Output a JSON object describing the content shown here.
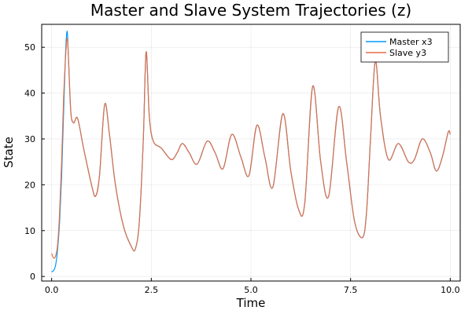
{
  "chart_data": {
    "type": "line",
    "title": "Master and Slave System Trajectories (z)",
    "xlabel": "Time",
    "ylabel": "State",
    "xlim": [
      -0.25,
      10.25
    ],
    "ylim": [
      -1,
      55
    ],
    "grid": true,
    "legend_position": "top-right",
    "x_ticks": [
      0,
      2.5,
      5,
      7.5,
      10
    ],
    "x_tick_labels": [
      "0.0",
      "2.5",
      "5.0",
      "7.5",
      "10.0"
    ],
    "y_ticks": [
      0,
      10,
      20,
      30,
      40,
      50
    ],
    "y_tick_labels": [
      "0",
      "10",
      "20",
      "30",
      "40",
      "50"
    ],
    "series": [
      {
        "name": "Master x3",
        "color": "#009AF9",
        "x": [
          0,
          0.05,
          0.1,
          0.15,
          0.2,
          0.25,
          0.3,
          0.35,
          0.39,
          0.42,
          0.48,
          0.55,
          0.65,
          0.8,
          1.0,
          1.1,
          1.2,
          1.33,
          1.45,
          1.6,
          1.8,
          2.0,
          2.1,
          2.2,
          2.3,
          2.37,
          2.45,
          2.55,
          2.75,
          3.0,
          3.15,
          3.28,
          3.45,
          3.65,
          3.9,
          4.1,
          4.3,
          4.52,
          4.75,
          4.95,
          5.15,
          5.35,
          5.55,
          5.8,
          6.0,
          6.2,
          6.35,
          6.55,
          6.75,
          6.95,
          7.2,
          7.4,
          7.6,
          7.8,
          7.9,
          8.0,
          8.12,
          8.25,
          8.45,
          8.7,
          8.95,
          9.1,
          9.3,
          9.5,
          9.65,
          9.8,
          9.95,
          10.0
        ],
        "y": [
          1,
          1.3,
          2.5,
          6,
          12,
          22,
          36,
          49,
          53.5,
          48,
          36,
          33.5,
          34.5,
          28,
          20,
          17.5,
          22,
          37.5,
          31,
          20,
          11,
          6.5,
          6,
          12,
          30,
          49,
          35,
          29.5,
          28,
          25.5,
          27,
          29,
          27,
          24.5,
          29.5,
          27,
          23.5,
          31,
          26,
          22,
          33,
          26,
          19.5,
          35.5,
          23,
          14.5,
          16,
          41.5,
          25,
          17.5,
          37,
          25,
          12,
          8.5,
          14,
          30,
          47,
          35,
          25.5,
          29,
          25,
          25.5,
          30,
          27,
          23,
          26,
          31.5,
          31
        ]
      },
      {
        "name": "Slave y3",
        "color": "#E26F46",
        "x": [
          0,
          0.05,
          0.1,
          0.15,
          0.2,
          0.25,
          0.3,
          0.35,
          0.39,
          0.42,
          0.48,
          0.55,
          0.65,
          0.8,
          1.0,
          1.1,
          1.2,
          1.33,
          1.45,
          1.6,
          1.8,
          2.0,
          2.1,
          2.2,
          2.3,
          2.37,
          2.45,
          2.55,
          2.75,
          3.0,
          3.15,
          3.28,
          3.45,
          3.65,
          3.9,
          4.1,
          4.3,
          4.52,
          4.75,
          4.95,
          5.15,
          5.35,
          5.55,
          5.8,
          6.0,
          6.2,
          6.35,
          6.55,
          6.75,
          6.95,
          7.2,
          7.4,
          7.6,
          7.8,
          7.9,
          8.0,
          8.12,
          8.25,
          8.45,
          8.7,
          8.95,
          9.1,
          9.3,
          9.5,
          9.65,
          9.8,
          9.95,
          10.0
        ],
        "y": [
          5,
          4,
          4.5,
          7,
          14,
          25,
          39,
          48,
          52,
          48,
          36,
          33.5,
          34.5,
          28,
          20,
          17.5,
          22,
          37.5,
          31,
          20,
          11,
          6.5,
          6,
          12,
          30,
          49,
          35,
          29.5,
          28,
          25.5,
          27,
          29,
          27,
          24.5,
          29.5,
          27,
          23.5,
          31,
          26,
          22,
          33,
          26,
          19.5,
          35.5,
          23,
          14.5,
          16,
          41.5,
          25,
          17.5,
          37,
          25,
          12,
          8.5,
          14,
          30,
          47,
          35,
          25.5,
          29,
          25,
          25.5,
          30,
          27,
          23,
          26,
          31.5,
          31
        ]
      }
    ]
  }
}
